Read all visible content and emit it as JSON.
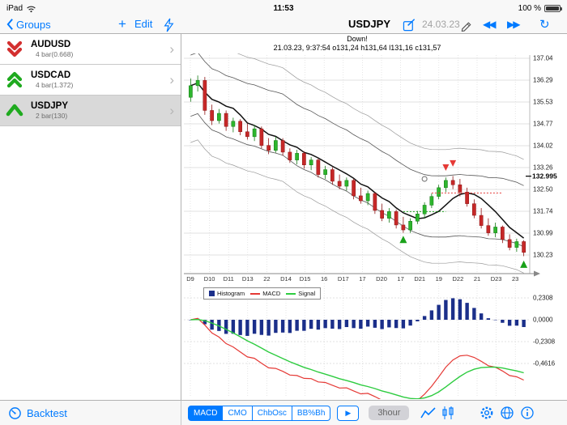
{
  "status": {
    "device": "iPad",
    "time": "11:53",
    "battery": "100 %"
  },
  "nav": {
    "back": "Groups",
    "plus": "+",
    "edit": "Edit",
    "title": "USDJPY",
    "date": "24.03.23",
    "rewind_icon": "◀◀",
    "forward_icon": "▶▶",
    "refresh_icon": "↻"
  },
  "sidebar": {
    "items": [
      {
        "symbol": "AUDUSD",
        "sub": "4 bar(0.668)",
        "trend": "down-double",
        "color": "#d32f2f"
      },
      {
        "symbol": "USDCAD",
        "sub": "4 bar(1.372)",
        "trend": "up-double",
        "color": "#1faa1f"
      },
      {
        "symbol": "USDJPY",
        "sub": "2 bar(130)",
        "trend": "up-single",
        "color": "#1faa1f"
      }
    ],
    "chevron": "›"
  },
  "bottombar": {
    "backtest": "Backtest",
    "indicators": [
      "MACD",
      "CMO",
      "ChbOsc",
      "BB%Bh"
    ],
    "selected_indicator": "MACD",
    "play_icon": "▶",
    "timeframe": "3hour"
  },
  "chart_data": {
    "type": "candlestick+macd",
    "title": "Down!",
    "subtitle": "21.03.23, 9:37:54 o131,24 h131,64 l131,16 c131,57",
    "price_axis": [
      "137.04",
      "136.29",
      "135.53",
      "134.77",
      "134.02",
      "133.26",
      "132.50",
      "131.74",
      "130.99",
      "130.23"
    ],
    "price_axis_values": [
      137.04,
      136.29,
      135.53,
      134.77,
      134.02,
      133.26,
      132.5,
      131.74,
      130.99,
      130.23
    ],
    "current_price": 132.995,
    "current_price_label": "132.995",
    "x_labels": [
      "D9",
      "D10",
      "D11",
      "D13",
      "22",
      "D14",
      "D15",
      "16",
      "D17",
      "17",
      "D20",
      "17",
      "D21",
      "19",
      "D22",
      "21",
      "D23",
      "23"
    ],
    "candles": [
      [
        135.7,
        136.35,
        135.55,
        136.1
      ],
      [
        136.1,
        136.45,
        135.9,
        136.28
      ],
      [
        136.28,
        136.4,
        135.1,
        135.25
      ],
      [
        135.25,
        135.45,
        134.75,
        134.9
      ],
      [
        134.9,
        135.3,
        134.8,
        135.15
      ],
      [
        135.15,
        135.25,
        134.55,
        134.7
      ],
      [
        134.7,
        135.0,
        134.5,
        134.88
      ],
      [
        134.88,
        134.95,
        134.4,
        134.52
      ],
      [
        134.52,
        134.8,
        134.25,
        134.35
      ],
      [
        134.35,
        134.75,
        134.2,
        134.62
      ],
      [
        134.62,
        134.7,
        133.95,
        134.05
      ],
      [
        134.05,
        134.3,
        133.75,
        133.88
      ],
      [
        133.88,
        134.35,
        133.8,
        134.22
      ],
      [
        134.22,
        134.3,
        133.7,
        133.82
      ],
      [
        133.82,
        133.95,
        133.45,
        133.55
      ],
      [
        133.55,
        133.9,
        133.4,
        133.78
      ],
      [
        133.78,
        133.85,
        133.25,
        133.38
      ],
      [
        133.38,
        133.65,
        133.2,
        133.55
      ],
      [
        133.55,
        133.6,
        132.95,
        133.05
      ],
      [
        133.05,
        133.35,
        132.9,
        133.22
      ],
      [
        133.22,
        133.3,
        132.7,
        132.82
      ],
      [
        132.82,
        133.05,
        132.55,
        132.65
      ],
      [
        132.65,
        132.95,
        132.5,
        132.85
      ],
      [
        132.85,
        132.9,
        132.2,
        132.32
      ],
      [
        132.32,
        132.6,
        132.05,
        132.15
      ],
      [
        132.15,
        132.5,
        132.0,
        132.4
      ],
      [
        132.4,
        132.45,
        131.7,
        131.82
      ],
      [
        131.82,
        132.05,
        131.45,
        131.55
      ],
      [
        131.55,
        131.9,
        131.4,
        131.78
      ],
      [
        131.78,
        131.85,
        131.2,
        131.32
      ],
      [
        131.32,
        131.6,
        131.05,
        131.15
      ],
      [
        131.15,
        131.55,
        131.05,
        131.45
      ],
      [
        131.45,
        131.8,
        131.35,
        131.7
      ],
      [
        131.7,
        132.1,
        131.55,
        132.0
      ],
      [
        132.0,
        132.4,
        131.9,
        132.3
      ],
      [
        132.3,
        132.7,
        132.2,
        132.6
      ],
      [
        132.6,
        132.95,
        132.45,
        132.85
      ],
      [
        132.85,
        133.0,
        132.55,
        132.7
      ],
      [
        132.7,
        132.9,
        132.3,
        132.45
      ],
      [
        132.45,
        132.6,
        131.95,
        132.05
      ],
      [
        132.05,
        132.2,
        131.55,
        131.65
      ],
      [
        131.65,
        131.9,
        131.2,
        131.3
      ],
      [
        131.3,
        131.55,
        130.95,
        131.05
      ],
      [
        131.05,
        131.4,
        130.9,
        131.25
      ],
      [
        131.25,
        131.3,
        130.7,
        130.82
      ],
      [
        130.82,
        131.0,
        130.45,
        130.55
      ],
      [
        130.55,
        130.85,
        130.4,
        130.75
      ],
      [
        130.75,
        130.8,
        130.25,
        130.38
      ]
    ],
    "macd_axis": [
      "0,2308",
      "0,0000",
      "-0,2308",
      "-0,4616"
    ],
    "macd_axis_values": [
      0.2308,
      0,
      -0.2308,
      -0.4616
    ],
    "legend": [
      {
        "label": "Histogram",
        "color": "#1b2f8a"
      },
      {
        "label": "MACD",
        "color": "#e53935"
      },
      {
        "label": "Signal",
        "color": "#2ecc40"
      }
    ],
    "markers": {
      "sell_arrows": [
        {
          "index": 36,
          "price": 133.18
        },
        {
          "index": 37,
          "price": 133.32
        }
      ],
      "buy_triangles": [
        {
          "index": 30,
          "price": 130.95
        },
        {
          "index": 47,
          "price": 130.1
        }
      ],
      "circle": {
        "index": 33,
        "price": 132.9
      },
      "dotted_red": {
        "from": 34,
        "to": 44,
        "price": 132.42
      },
      "dotted_green": {
        "from": 30,
        "to": 36,
        "price": 131.78
      }
    }
  }
}
